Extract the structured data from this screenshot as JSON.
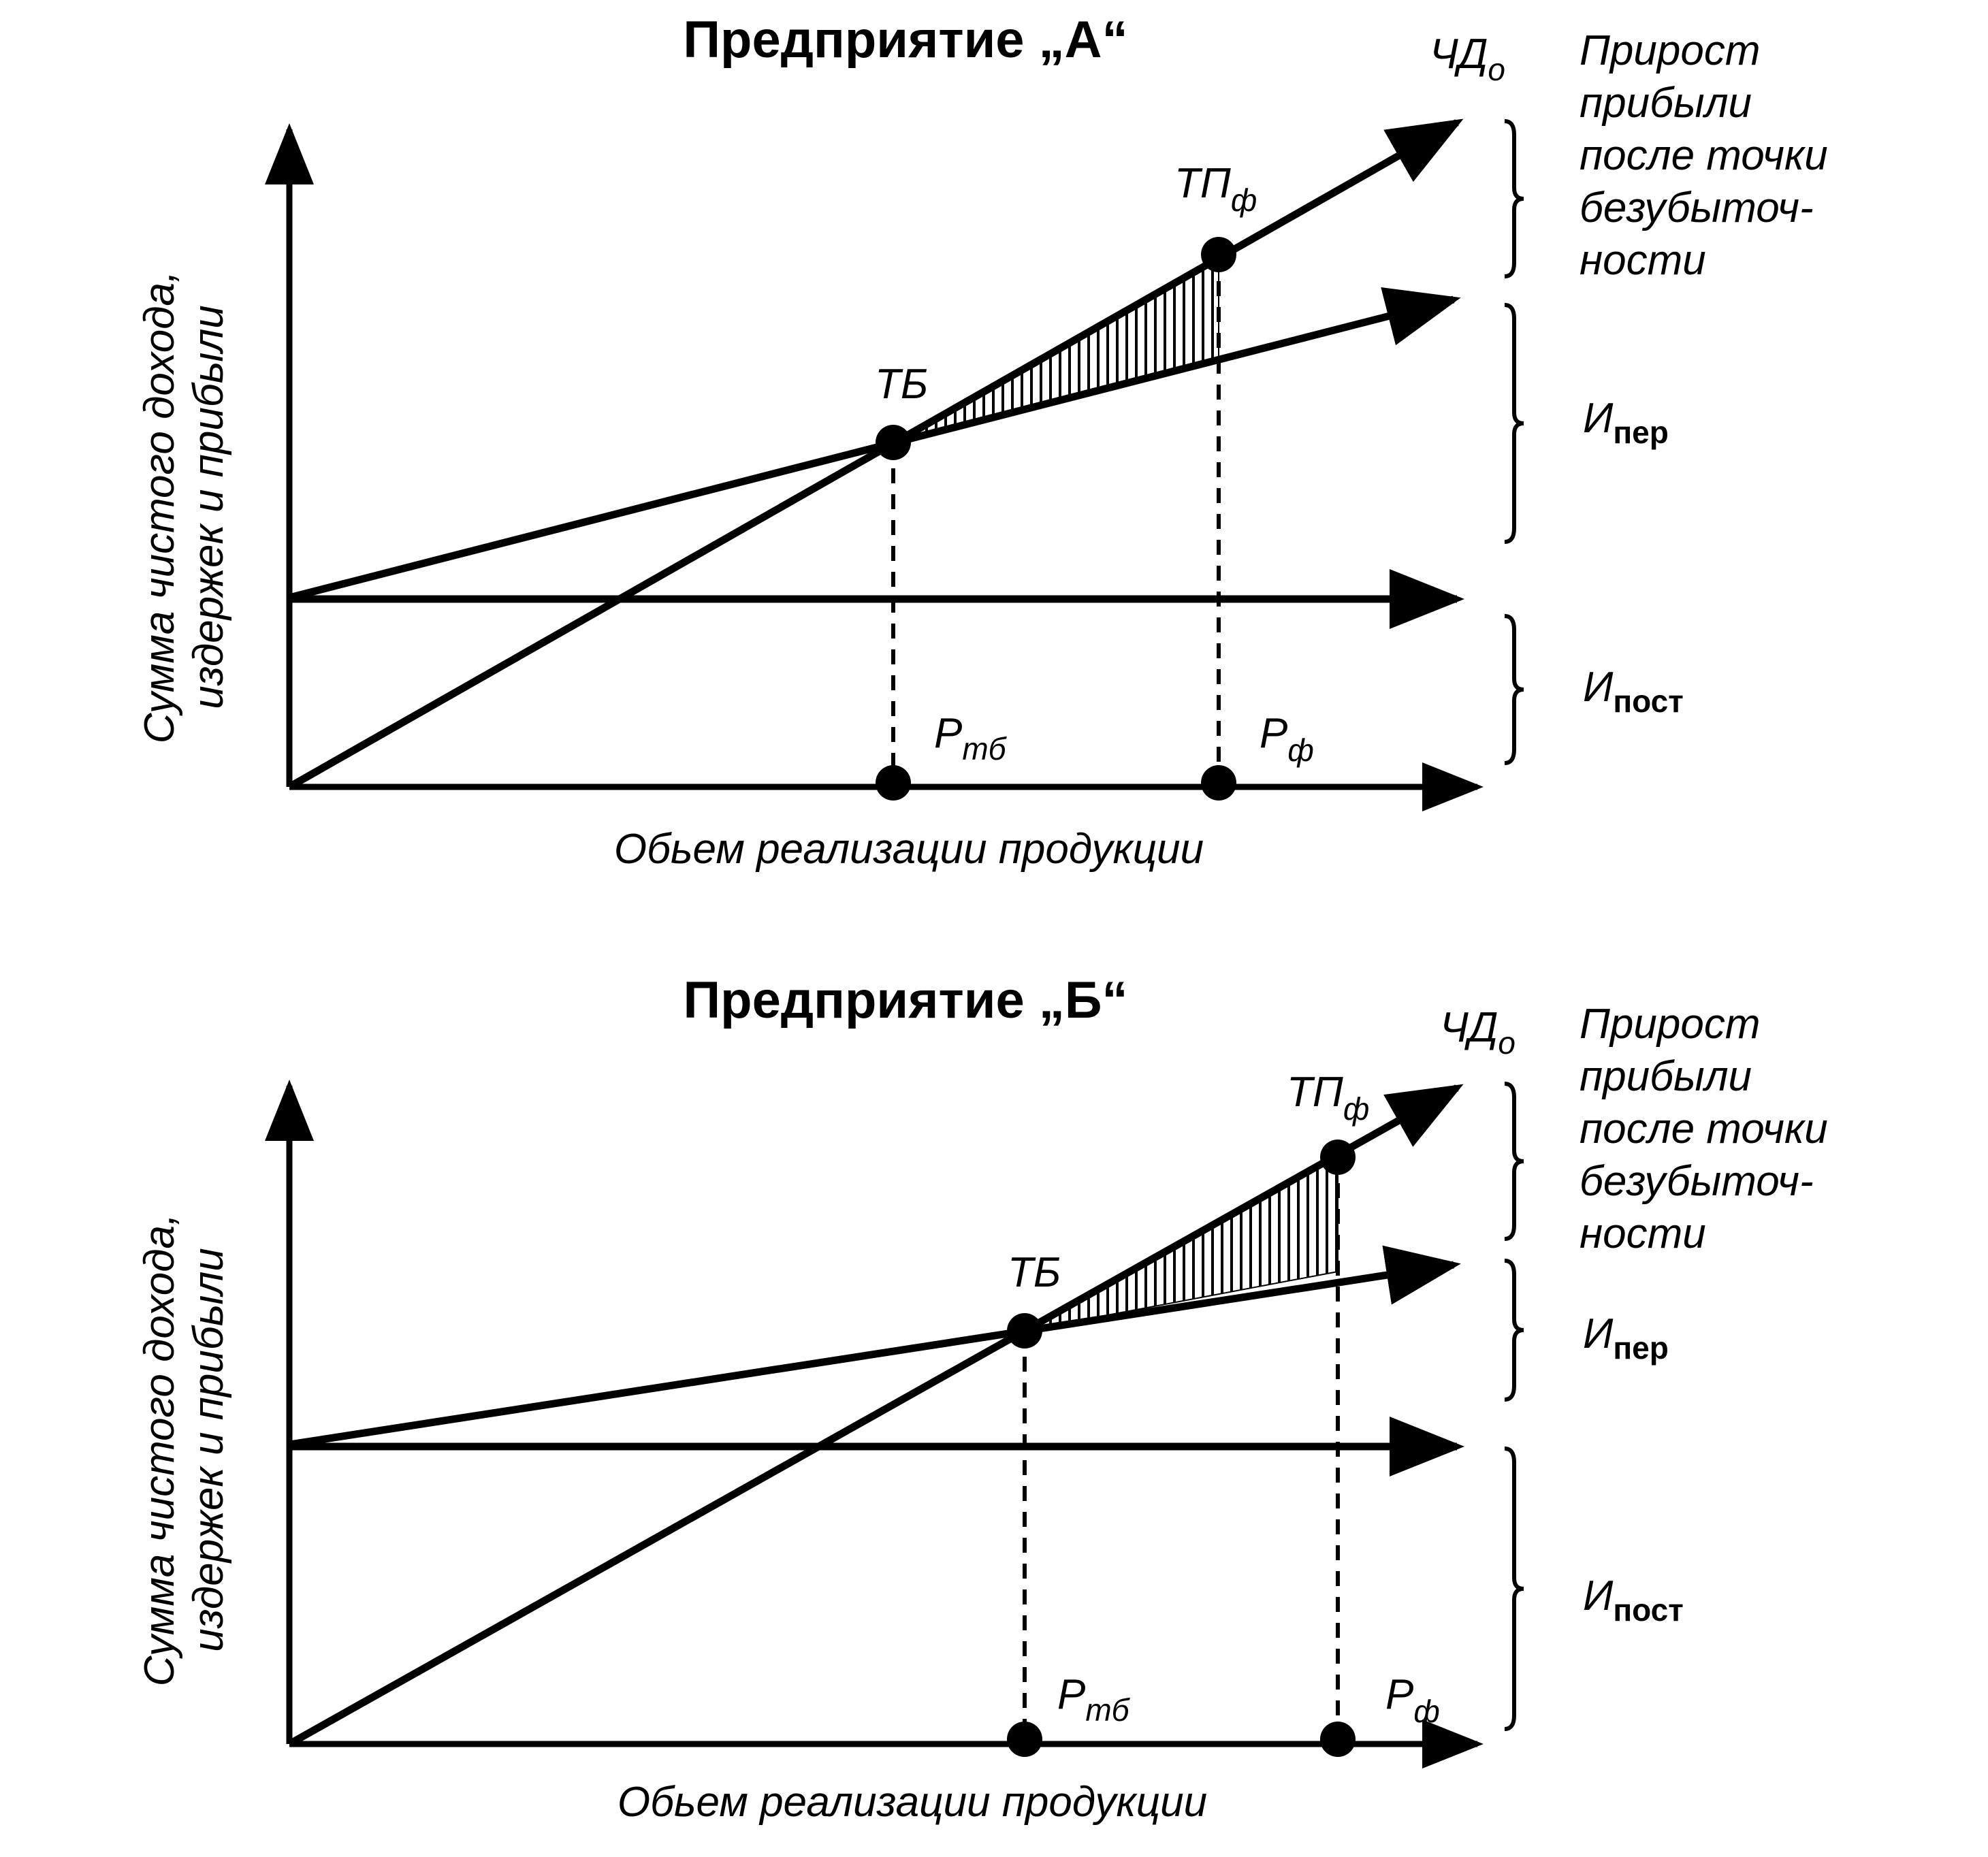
{
  "panels": [
    {
      "id": "A",
      "title": "Предприятие „А“",
      "y_axis_lines": [
        "Сумма чистого дохода,",
        "издержек и прибыли"
      ],
      "x_axis_label": "Обьем реализации продукции",
      "labels": {
        "revenue": "ЧД",
        "revenue_sub": "о",
        "tp": "ТП",
        "tp_sub": "ф",
        "tb": "ТБ",
        "p_tb": "Р",
        "p_tb_sub": "тб",
        "p_f": "Р",
        "p_f_sub": "ф"
      },
      "legend": {
        "growth_lines": [
          "Прирост",
          "прибыли",
          "после точки",
          "безубыточ-",
          "ности"
        ],
        "var_main": "И",
        "var_sub": "пер",
        "fix_main": "И",
        "fix_sub": "пост"
      }
    },
    {
      "id": "B",
      "title": "Предприятие „Б“",
      "y_axis_lines": [
        "Сумма чистого дохода,",
        "издержек и прибыли"
      ],
      "x_axis_label": "Обьем реализации продукции",
      "labels": {
        "revenue": "ЧД",
        "revenue_sub": "о",
        "tp": "ТП",
        "tp_sub": "ф",
        "tb": "ТБ",
        "p_tb": "Р",
        "p_tb_sub": "тб",
        "p_f": "Р",
        "p_f_sub": "ф"
      },
      "legend": {
        "growth_lines": [
          "Прирост",
          "прибыли",
          "после точки",
          "безубыточ-",
          "ности"
        ],
        "var_main": "И",
        "var_sub": "пер",
        "fix_main": "И",
        "fix_sub": "пост"
      }
    }
  ]
}
